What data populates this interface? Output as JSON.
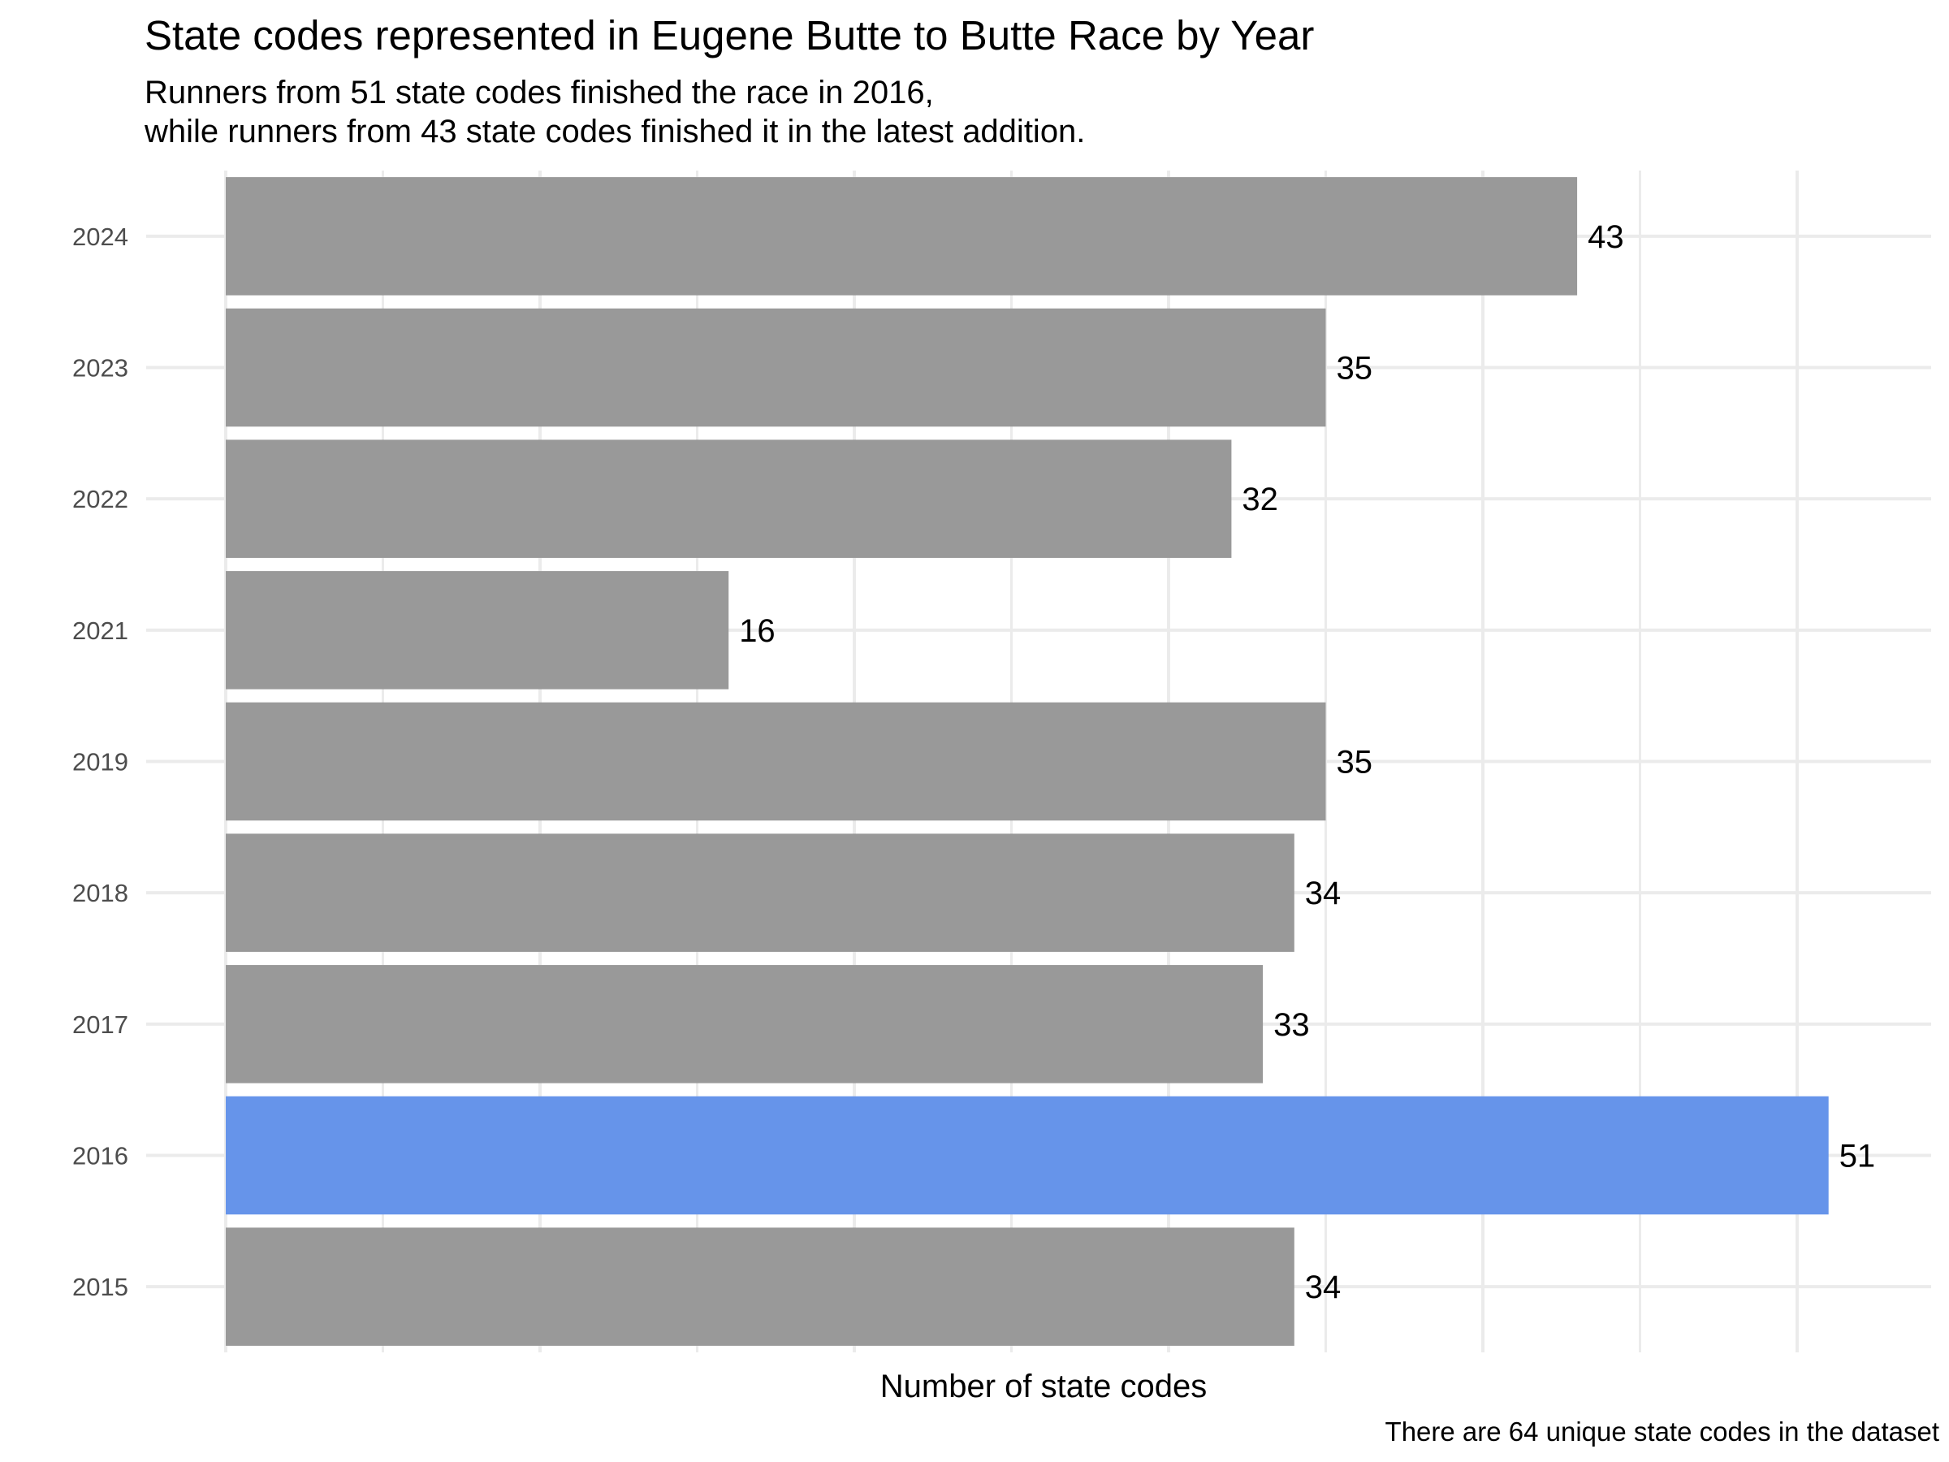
{
  "title": "State codes represented in Eugene Butte to Butte Race by Year",
  "subtitle_lines": [
    "Runners from 51 state codes finished the race in 2016,",
    "while runners from 43 state codes finished it in the latest addition."
  ],
  "caption": "There are 64 unique state codes in the dataset",
  "colors": {
    "default_bar": "#999999",
    "highlight_bar": "#6694EA",
    "grid": "#EBEBEB",
    "tick_label": "#4D4D4D",
    "text": "#000000"
  },
  "chart_data": {
    "type": "bar",
    "orientation": "horizontal",
    "categories": [
      "2024",
      "2023",
      "2022",
      "2021",
      "2019",
      "2018",
      "2017",
      "2016",
      "2015"
    ],
    "values": [
      43,
      35,
      32,
      16,
      35,
      34,
      33,
      51,
      34
    ],
    "highlight": "2016",
    "xlabel": "Number of state codes",
    "ylabel": "",
    "xlim": [
      0,
      52.5
    ],
    "x_tick_labels_shown": false,
    "grid": true,
    "legend": "none"
  }
}
